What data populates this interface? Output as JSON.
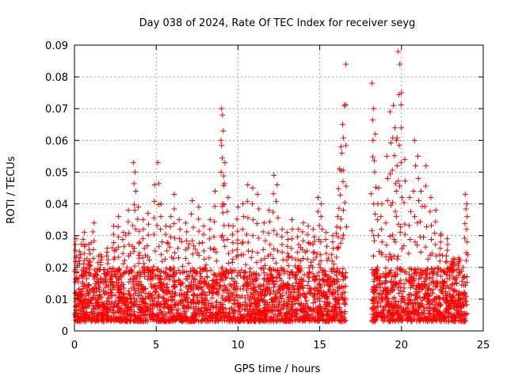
{
  "chart_data": {
    "type": "scatter",
    "title": "Day 038 of 2024, Rate Of TEC Index for receiver seyg",
    "xlabel": "GPS time / hours",
    "ylabel": "ROTI / TECUs",
    "xlim": [
      0,
      25
    ],
    "ylim": [
      0,
      0.09
    ],
    "xticks": [
      "0",
      "5",
      "10",
      "15",
      "20",
      "25"
    ],
    "yticks": [
      "0",
      "0.01",
      "0.02",
      "0.03",
      "0.04",
      "0.05",
      "0.06",
      "0.07",
      "0.08",
      "0.09"
    ],
    "grid": true,
    "marker": "+",
    "color": "#ff0000",
    "series": [
      {
        "name": "ROTI",
        "points": [
          [
            0.1,
            0.029
          ],
          [
            0.3,
            0.025
          ],
          [
            0.6,
            0.031
          ],
          [
            0.9,
            0.022
          ],
          [
            1.2,
            0.034
          ],
          [
            1.6,
            0.024
          ],
          [
            2.0,
            0.026
          ],
          [
            2.4,
            0.033
          ],
          [
            2.7,
            0.036
          ],
          [
            3.0,
            0.031
          ],
          [
            3.3,
            0.038
          ],
          [
            3.6,
            0.053
          ],
          [
            3.7,
            0.05
          ],
          [
            3.9,
            0.039
          ],
          [
            4.2,
            0.035
          ],
          [
            4.5,
            0.037
          ],
          [
            4.9,
            0.046
          ],
          [
            5.1,
            0.053
          ],
          [
            5.3,
            0.04
          ],
          [
            5.6,
            0.033
          ],
          [
            5.9,
            0.036
          ],
          [
            6.1,
            0.043
          ],
          [
            6.4,
            0.035
          ],
          [
            6.8,
            0.034
          ],
          [
            7.2,
            0.041
          ],
          [
            7.6,
            0.039
          ],
          [
            7.9,
            0.033
          ],
          [
            8.3,
            0.035
          ],
          [
            8.6,
            0.044
          ],
          [
            9.0,
            0.07
          ],
          [
            9.05,
            0.068
          ],
          [
            9.1,
            0.063
          ],
          [
            9.2,
            0.053
          ],
          [
            9.4,
            0.042
          ],
          [
            9.7,
            0.033
          ],
          [
            10.0,
            0.039
          ],
          [
            10.3,
            0.04
          ],
          [
            10.6,
            0.046
          ],
          [
            10.9,
            0.045
          ],
          [
            11.2,
            0.043
          ],
          [
            11.6,
            0.034
          ],
          [
            11.9,
            0.038
          ],
          [
            12.2,
            0.049
          ],
          [
            12.4,
            0.046
          ],
          [
            12.7,
            0.032
          ],
          [
            13.0,
            0.031
          ],
          [
            13.3,
            0.035
          ],
          [
            13.7,
            0.032
          ],
          [
            14.0,
            0.034
          ],
          [
            14.3,
            0.033
          ],
          [
            14.6,
            0.032
          ],
          [
            14.9,
            0.042
          ],
          [
            15.1,
            0.04
          ],
          [
            15.4,
            0.031
          ],
          [
            15.8,
            0.03
          ],
          [
            16.1,
            0.036
          ],
          [
            16.2,
            0.051
          ],
          [
            16.3,
            0.058
          ],
          [
            16.4,
            0.065
          ],
          [
            16.5,
            0.071
          ],
          [
            16.6,
            0.084
          ],
          [
            18.2,
            0.078
          ],
          [
            18.3,
            0.07
          ],
          [
            18.4,
            0.062
          ],
          [
            18.6,
            0.045
          ],
          [
            18.8,
            0.04
          ],
          [
            19.1,
            0.055
          ],
          [
            19.3,
            0.069
          ],
          [
            19.5,
            0.071
          ],
          [
            19.6,
            0.064
          ],
          [
            19.7,
            0.06
          ],
          [
            19.8,
            0.088
          ],
          [
            19.9,
            0.084
          ],
          [
            20.0,
            0.075
          ],
          [
            20.2,
            0.054
          ],
          [
            20.5,
            0.042
          ],
          [
            20.8,
            0.06
          ],
          [
            21.0,
            0.055
          ],
          [
            21.2,
            0.044
          ],
          [
            21.5,
            0.052
          ],
          [
            21.8,
            0.042
          ],
          [
            22.1,
            0.038
          ],
          [
            22.4,
            0.03
          ],
          [
            22.8,
            0.029
          ],
          [
            23.1,
            0.022
          ],
          [
            23.5,
            0.023
          ],
          [
            23.9,
            0.043
          ],
          [
            24.0,
            0.04
          ]
        ],
        "dense_band": {
          "x_ranges": [
            [
              0,
              16.6
            ],
            [
              18.2,
              24.0
            ]
          ],
          "typical_low": 0.003,
          "typical_high": 0.02
        }
      }
    ]
  }
}
